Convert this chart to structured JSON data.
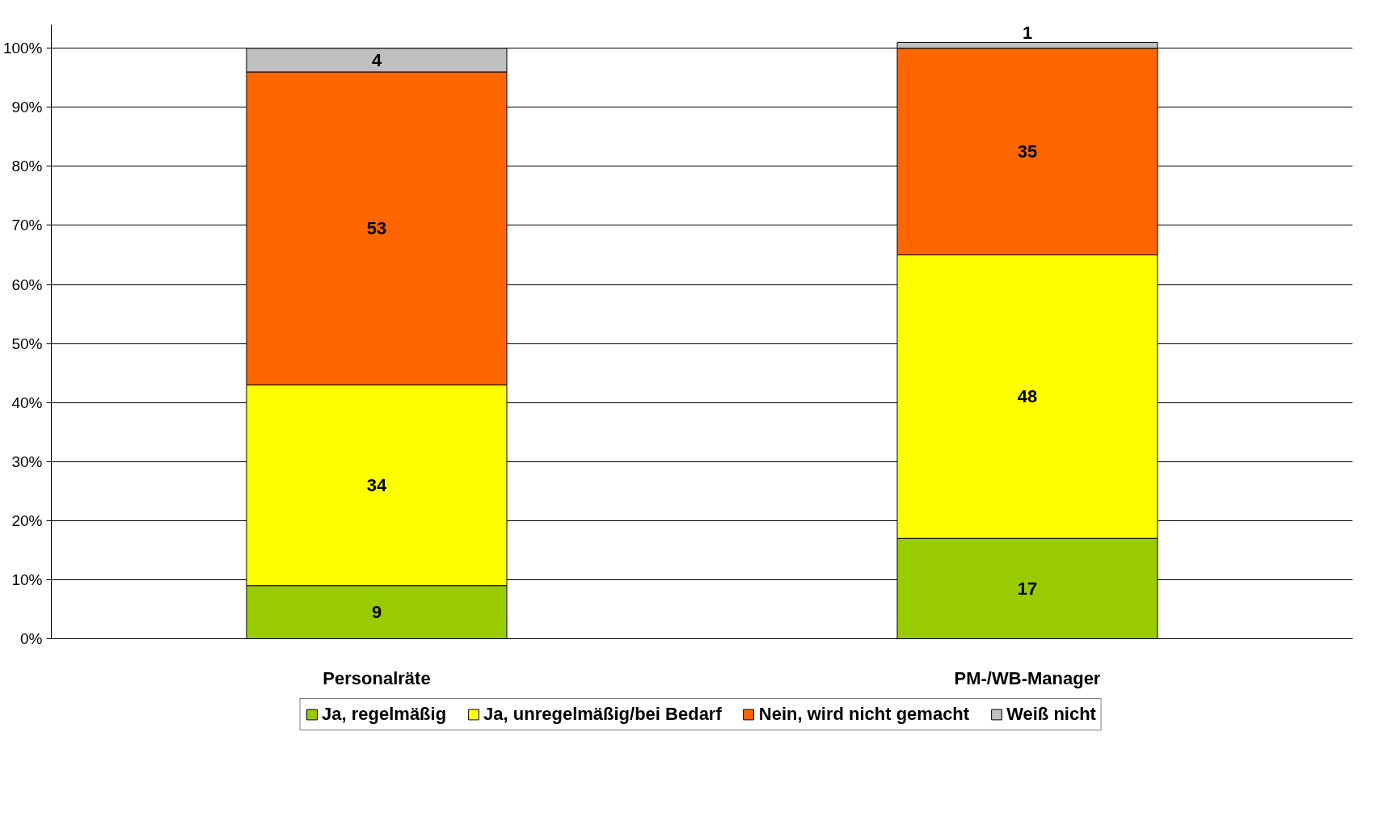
{
  "chart_data": {
    "type": "bar",
    "stacked": true,
    "categories": [
      "Personalräte",
      "PM-/WB-Manager"
    ],
    "series": [
      {
        "name": "Ja, regelmäßig",
        "color": "#99cc00",
        "values": [
          9,
          17
        ]
      },
      {
        "name": "Ja, unregelmäßig/bei Bedarf",
        "color": "#ffff00",
        "values": [
          34,
          48
        ]
      },
      {
        "name": "Nein, wird nicht gemacht",
        "color": "#ff6600",
        "values": [
          53,
          35
        ]
      },
      {
        "name": "Weiß nicht",
        "color": "#c0c0c0",
        "values": [
          4,
          1
        ]
      }
    ],
    "ylim": [
      0,
      104
    ],
    "yticks": [
      {
        "value": 0,
        "label": "0%"
      },
      {
        "value": 10,
        "label": "10%"
      },
      {
        "value": 20,
        "label": "20%"
      },
      {
        "value": 30,
        "label": "30%"
      },
      {
        "value": 40,
        "label": "40%"
      },
      {
        "value": 50,
        "label": "50%"
      },
      {
        "value": 60,
        "label": "60%"
      },
      {
        "value": 70,
        "label": "70%"
      },
      {
        "value": 80,
        "label": "80%"
      },
      {
        "value": 90,
        "label": "90%"
      },
      {
        "value": 100,
        "label": "100%"
      }
    ],
    "grid": "y",
    "legend": "bottom",
    "data_labels": true
  }
}
